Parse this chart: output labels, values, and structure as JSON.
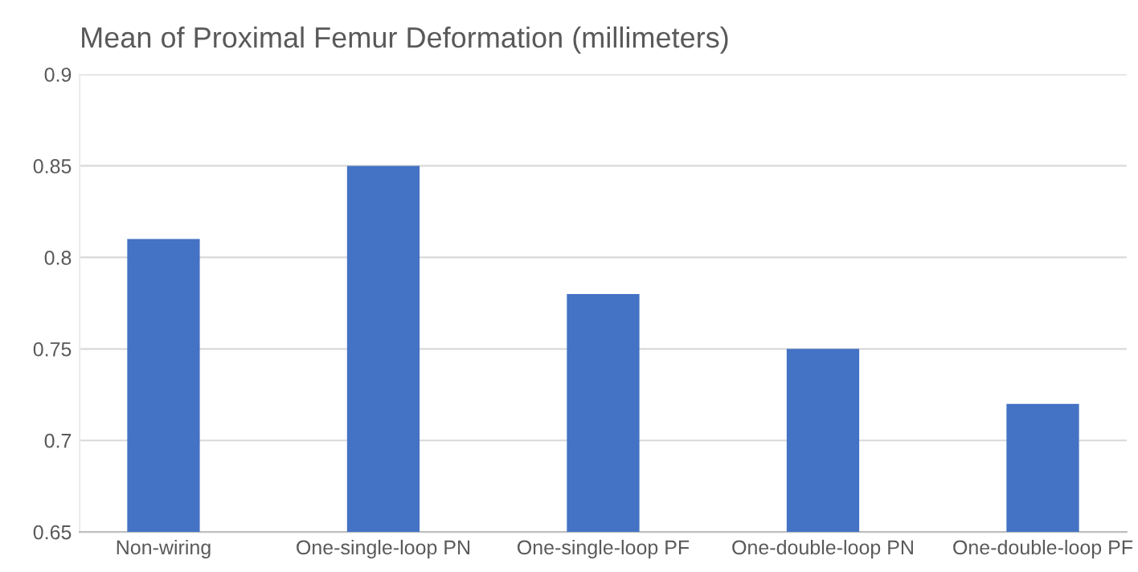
{
  "chart_data": {
    "type": "bar",
    "title": "Mean of Proximal Femur Deformation (millimeters)",
    "categories": [
      "Non-wiring",
      "One-single-loop PN",
      "One-single-loop PF",
      "One-double-loop PN",
      "One-double-loop PF"
    ],
    "values": [
      0.81,
      0.85,
      0.78,
      0.75,
      0.72
    ],
    "color": "#4472c4",
    "ylim": [
      0.65,
      0.9
    ],
    "yticks": [
      0.65,
      0.7,
      0.75,
      0.8,
      0.85,
      0.9
    ],
    "grid": "y",
    "legend": false
  }
}
